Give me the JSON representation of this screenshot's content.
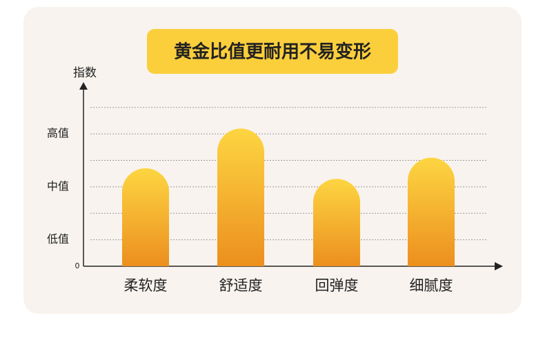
{
  "chart_data": {
    "type": "bar",
    "title": "黄金比值更耐用不易变形",
    "y_label": "指数",
    "categories": [
      "柔软度",
      "舒适度",
      "回弹度",
      "细腻度"
    ],
    "values": [
      3.7,
      5.2,
      3.3,
      4.1
    ],
    "gradient": [
      "#fdd542",
      "#ec8f1e"
    ],
    "ylim": [
      0,
      6.8
    ],
    "yticks": [
      0,
      {
        "value": 1,
        "label": "低值"
      },
      {
        "value": 2,
        "label": null
      },
      {
        "value": 3,
        "label": "中值"
      },
      {
        "value": 4,
        "label": null
      },
      {
        "value": 5,
        "label": "高值"
      },
      {
        "value": 6,
        "label": null
      }
    ],
    "grid": true
  }
}
